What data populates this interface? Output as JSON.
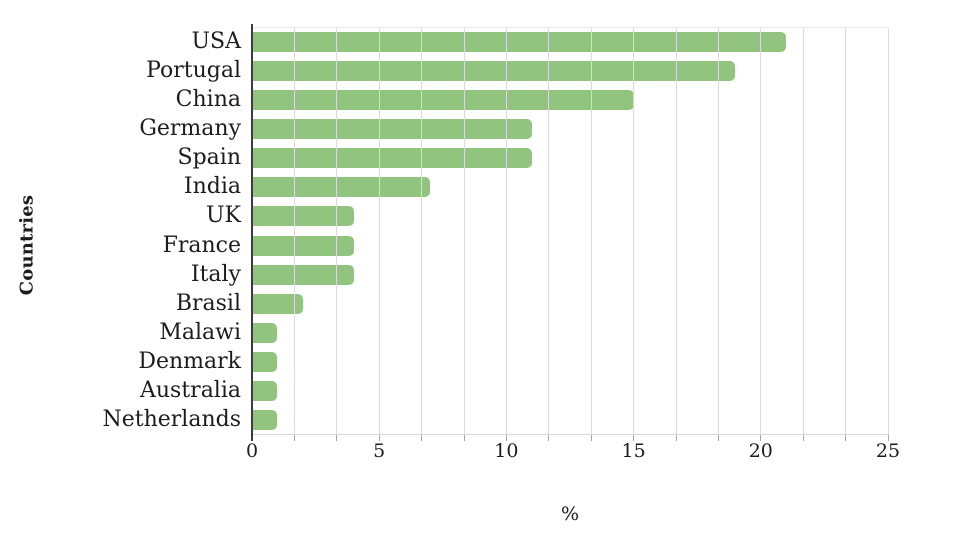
{
  "chart": {
    "bar_color": "#91C57F",
    "gridline_color": "#DBDBDB",
    "axis_line_color": "#3C3C3C",
    "tick_mark_color": "#A9A9A9",
    "text_color": "#1C1C1C",
    "background_color": "#FFFFFF"
  },
  "chart_data": {
    "type": "bar",
    "orientation": "horizontal",
    "title": "",
    "xlabel": "%",
    "ylabel": "Countries",
    "categories": [
      "USA",
      "Portugal",
      "China",
      "Germany",
      "Spain",
      "India",
      "UK",
      "France",
      "Italy",
      "Brasil",
      "Malawi",
      "Denmark",
      "Australia",
      "Netherlands"
    ],
    "values": [
      21,
      19,
      15,
      11,
      11,
      7,
      4,
      4,
      4,
      2,
      1,
      1,
      1,
      1
    ],
    "xlim": [
      0,
      25
    ],
    "x_ticks": [
      0,
      5,
      10,
      15,
      20,
      25
    ],
    "minor_gridlines_per_major_interval": 3,
    "grid": true,
    "gridlines_drawn_over_bars": true,
    "legend": false
  }
}
